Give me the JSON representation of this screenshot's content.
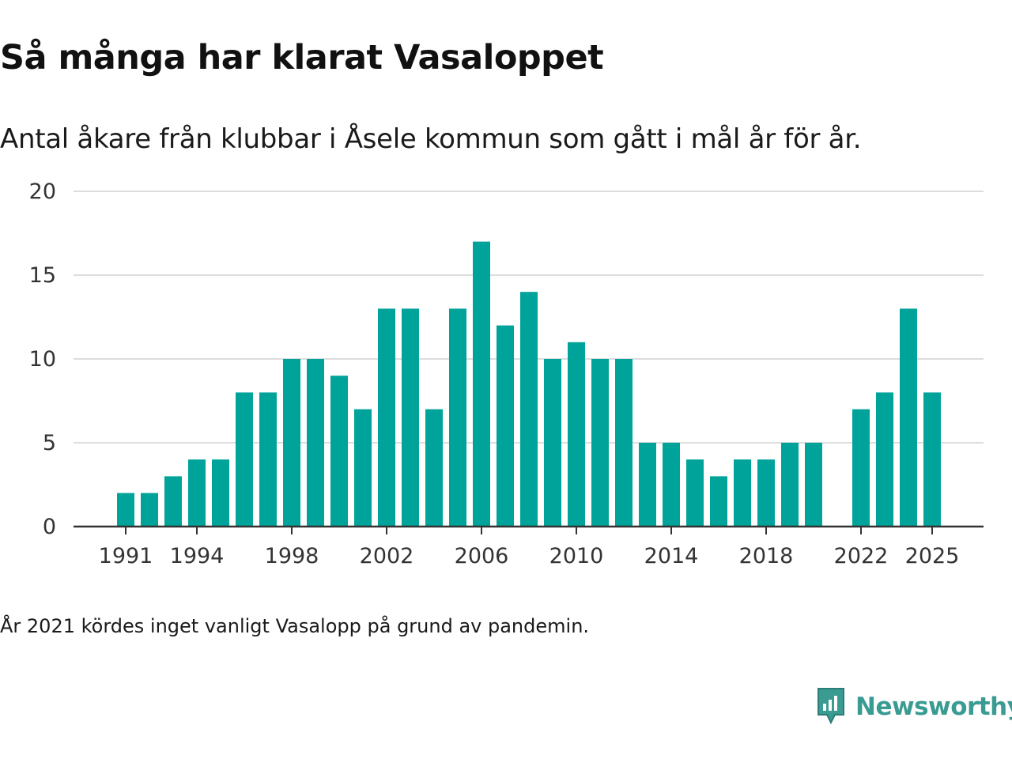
{
  "title": "Så många har klarat Vasaloppet",
  "subtitle": "Antal åkare från klubbar i Åsele kommun som gått i mål år för år.",
  "footnote": "År 2021 kördes inget vanligt Vasalopp på grund av pandemin.",
  "brand": {
    "name": "Newsworthy",
    "icon": "newsworthy-logo-icon",
    "color": "#3a9b93"
  },
  "chart_data": {
    "type": "bar",
    "title": "Så många har klarat Vasaloppet",
    "xlabel": "",
    "ylabel": "",
    "ylim": [
      0,
      20
    ],
    "yticks": [
      0,
      5,
      10,
      15,
      20
    ],
    "xticks": [
      1991,
      1994,
      1998,
      2002,
      2006,
      2010,
      2014,
      2018,
      2022,
      2025
    ],
    "grid": true,
    "bar_color": "#00a39a",
    "categories": [
      1991,
      1992,
      1993,
      1994,
      1995,
      1996,
      1997,
      1998,
      1999,
      2000,
      2001,
      2002,
      2003,
      2004,
      2005,
      2006,
      2007,
      2008,
      2009,
      2010,
      2011,
      2012,
      2013,
      2014,
      2015,
      2016,
      2017,
      2018,
      2019,
      2020,
      2021,
      2022,
      2023,
      2024,
      2025
    ],
    "values": [
      2,
      2,
      3,
      4,
      4,
      8,
      8,
      10,
      10,
      9,
      7,
      13,
      13,
      7,
      13,
      17,
      12,
      14,
      10,
      11,
      10,
      10,
      5,
      5,
      4,
      3,
      4,
      4,
      5,
      5,
      null,
      7,
      8,
      13,
      8
    ]
  }
}
